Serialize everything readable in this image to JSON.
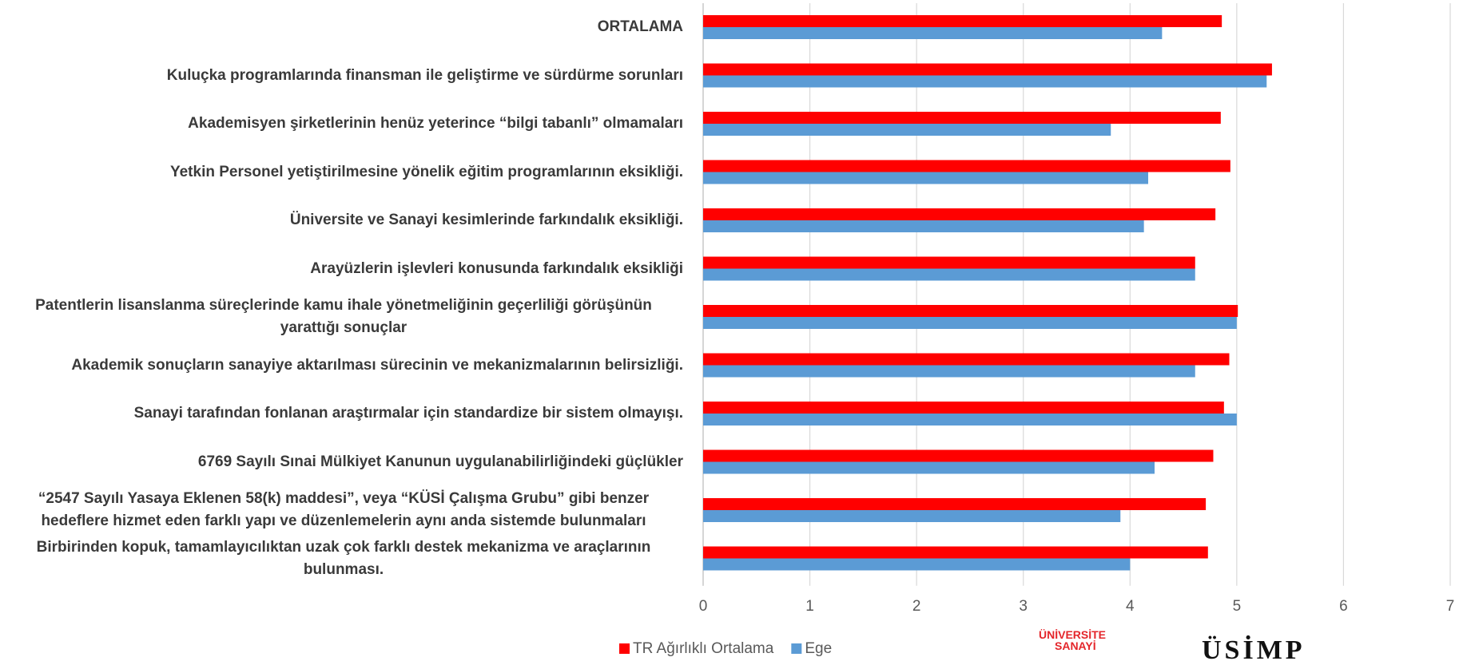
{
  "chart_data": {
    "type": "barh",
    "categories": [
      "ORTALAMA",
      "Kuluçka programlarında finansman ile geliştirme ve sürdürme sorunları",
      "Akademisyen şirketlerinin henüz yeterince “bilgi tabanlı” olmamaları",
      "Yetkin Personel yetiştirilmesine yönelik eğitim programlarının eksikliği.",
      "Üniversite ve Sanayi kesimlerinde farkındalık eksikliği.",
      "Arayüzlerin işlevleri konusunda farkındalık eksikliği",
      "Patentlerin lisanslanma süreçlerinde kamu ihale yönetmeliğinin geçerliliği görüşünün yarattığı sonuçlar",
      "Akademik sonuçların sanayiye aktarılması sürecinin ve mekanizmalarının belirsizliği.",
      "Sanayi tarafından fonlanan araştırmalar için standardize bir sistem olmayışı.",
      "6769 Sayılı Sınai Mülkiyet Kanunun uygulanabilirliğindeki güçlükler",
      "“2547 Sayılı Yasaya Eklenen 58(k) maddesi”, veya “KÜSİ Çalışma Grubu” gibi benzer hedeflere hizmet eden farklı yapı ve düzenlemelerin aynı anda sistemde bulunmaları",
      "Birbirinden kopuk, tamamlayıcılıktan uzak çok farklı destek mekanizma ve araçlarının bulunması."
    ],
    "series": [
      {
        "name": "TR Ağırlıklı Ortalama",
        "color": "#ff0000",
        "values": [
          4.86,
          5.33,
          4.85,
          4.94,
          4.8,
          4.61,
          5.01,
          4.93,
          4.88,
          4.78,
          4.71,
          4.73
        ]
      },
      {
        "name": "Ege",
        "color": "#5b9bd5",
        "values": [
          4.3,
          5.28,
          3.82,
          4.17,
          4.13,
          4.61,
          5.0,
          4.61,
          5.0,
          4.23,
          3.91,
          4.0
        ]
      }
    ],
    "xlim": [
      0,
      7
    ],
    "xticks": [
      0,
      1,
      2,
      3,
      4,
      5,
      6,
      7
    ],
    "grid": true,
    "legend": "bottom"
  },
  "logos": {
    "left": [
      "ÜNİVERSİTE",
      "SANAYİ"
    ],
    "right": "ÜSİMP"
  }
}
